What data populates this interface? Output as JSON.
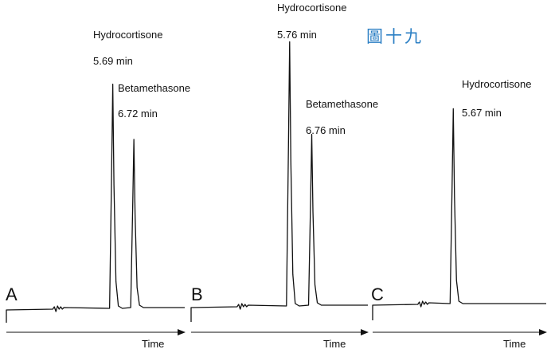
{
  "figure_tag": "圖十九",
  "chart_data": [
    {
      "type": "line",
      "panel": "A",
      "xlabel": "Time",
      "peaks": [
        {
          "compound": "Hydrocortisone",
          "rt_label": "5.69 min",
          "rt": 5.69,
          "relative_height": 0.84
        },
        {
          "compound": "Betamethasone",
          "rt_label": "6.72 min",
          "rt": 6.72,
          "relative_height": 0.63
        }
      ]
    },
    {
      "type": "line",
      "panel": "B",
      "xlabel": "Time",
      "peaks": [
        {
          "compound": "Hydrocortisone",
          "rt_label": "5.76 min",
          "rt": 5.76,
          "relative_height": 0.99
        },
        {
          "compound": "Betamethasone",
          "rt_label": "6.76 min",
          "rt": 6.76,
          "relative_height": 0.64
        }
      ]
    },
    {
      "type": "line",
      "panel": "C",
      "xlabel": "Time",
      "peaks": [
        {
          "compound": "Hydrocortisone",
          "rt_label": "5.67 min",
          "rt": 5.67,
          "relative_height": 0.73
        }
      ]
    }
  ]
}
